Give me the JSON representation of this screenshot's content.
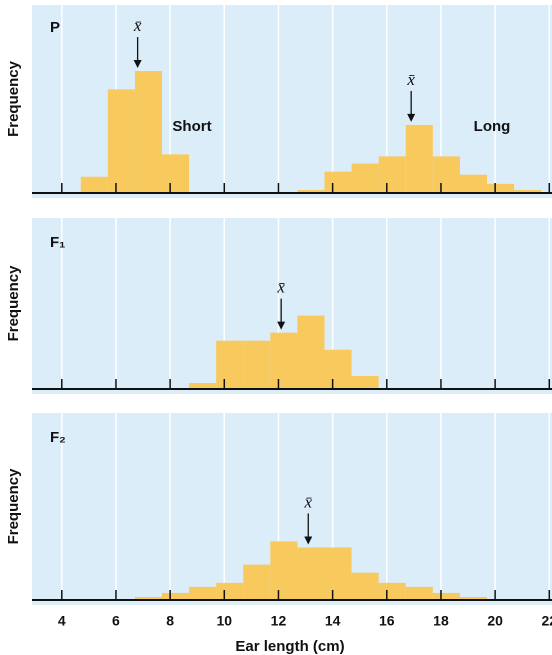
{
  "chart_data": [
    {
      "type": "histogram",
      "panel_label": "P",
      "ylabel": "Frequency",
      "xlim": [
        2.9,
        22.1
      ],
      "xticks": [
        4,
        6,
        8,
        10,
        12,
        14,
        16,
        18,
        20,
        22
      ],
      "ylim": [
        0,
        185
      ],
      "grid": true,
      "series": [
        {
          "name": "Short",
          "color": "#f8c95c",
          "bins": [
            4.7,
            5.7,
            6.7,
            7.7,
            8.7
          ],
          "values": [
            16,
            102,
            120,
            38
          ],
          "mean": 6.8,
          "mean_label": "x̄"
        },
        {
          "name": "Long",
          "color": "#f8c95c",
          "bins": [
            12.7,
            13.7,
            14.7,
            15.7,
            16.7,
            17.7,
            18.7,
            19.7,
            20.7,
            21.7
          ],
          "values": [
            3,
            21,
            29,
            36,
            67,
            36,
            18,
            9,
            3
          ],
          "mean": 16.9,
          "mean_label": "x̄"
        }
      ]
    },
    {
      "type": "histogram",
      "panel_label": "F₁",
      "ylabel": "Frequency",
      "xlim": [
        2.9,
        22.1
      ],
      "xticks": [
        4,
        6,
        8,
        10,
        12,
        14,
        16,
        18,
        20,
        22
      ],
      "ylim": [
        0,
        170
      ],
      "grid": true,
      "series": [
        {
          "color": "#f8c95c",
          "bins": [
            8.7,
            9.7,
            10.7,
            11.7,
            12.7,
            13.7,
            14.7,
            15.7
          ],
          "values": [
            6,
            48,
            48,
            56,
            73,
            39,
            13
          ],
          "mean": 12.1,
          "mean_label": "x̄"
        }
      ]
    },
    {
      "type": "histogram",
      "panel_label": "F₂",
      "ylabel": "Frequency",
      "xlabel": "Ear length (cm)",
      "xlim": [
        2.9,
        22.1
      ],
      "xticks": [
        4,
        6,
        8,
        10,
        12,
        14,
        16,
        18,
        20,
        22
      ],
      "ylim": [
        0,
        185
      ],
      "grid": true,
      "series": [
        {
          "color": "#f8c95c",
          "bins": [
            6.7,
            7.7,
            8.7,
            9.7,
            10.7,
            11.7,
            12.7,
            13.7,
            14.7,
            15.7,
            16.7,
            17.7,
            18.7,
            19.7
          ],
          "values": [
            3,
            7,
            13,
            17,
            35,
            58,
            52,
            52,
            27,
            17,
            13,
            7,
            3
          ],
          "mean": 13.1,
          "mean_label": "x̄"
        }
      ]
    }
  ]
}
